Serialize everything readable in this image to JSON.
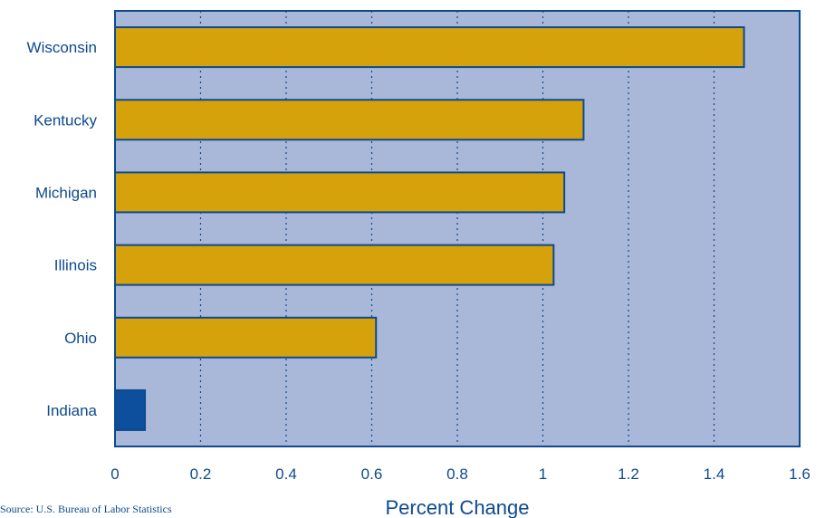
{
  "chart_data": {
    "type": "bar",
    "orientation": "horizontal",
    "categories": [
      "Wisconsin",
      "Kentucky",
      "Michigan",
      "Illinois",
      "Ohio",
      "Indiana"
    ],
    "values": [
      1.47,
      1.095,
      1.05,
      1.025,
      0.61,
      0.07
    ],
    "xlabel": "Percent Change",
    "ylabel": "",
    "xlim": [
      0,
      1.6
    ],
    "xticks": [
      "0",
      "0.2",
      "0.4",
      "0.6",
      "0.8",
      "1",
      "1.2",
      "1.4",
      "1.6"
    ],
    "grid": "vertical dotted",
    "highlight_category": "Indiana",
    "colors": {
      "plot_background": "#a9b7d9",
      "bar": "#d6a20c",
      "highlight_bar": "#0d4f9c",
      "outline": "#0d4a8e",
      "text": "#0d4a8e"
    }
  },
  "source": "Source: U.S. Bureau of Labor Statistics"
}
